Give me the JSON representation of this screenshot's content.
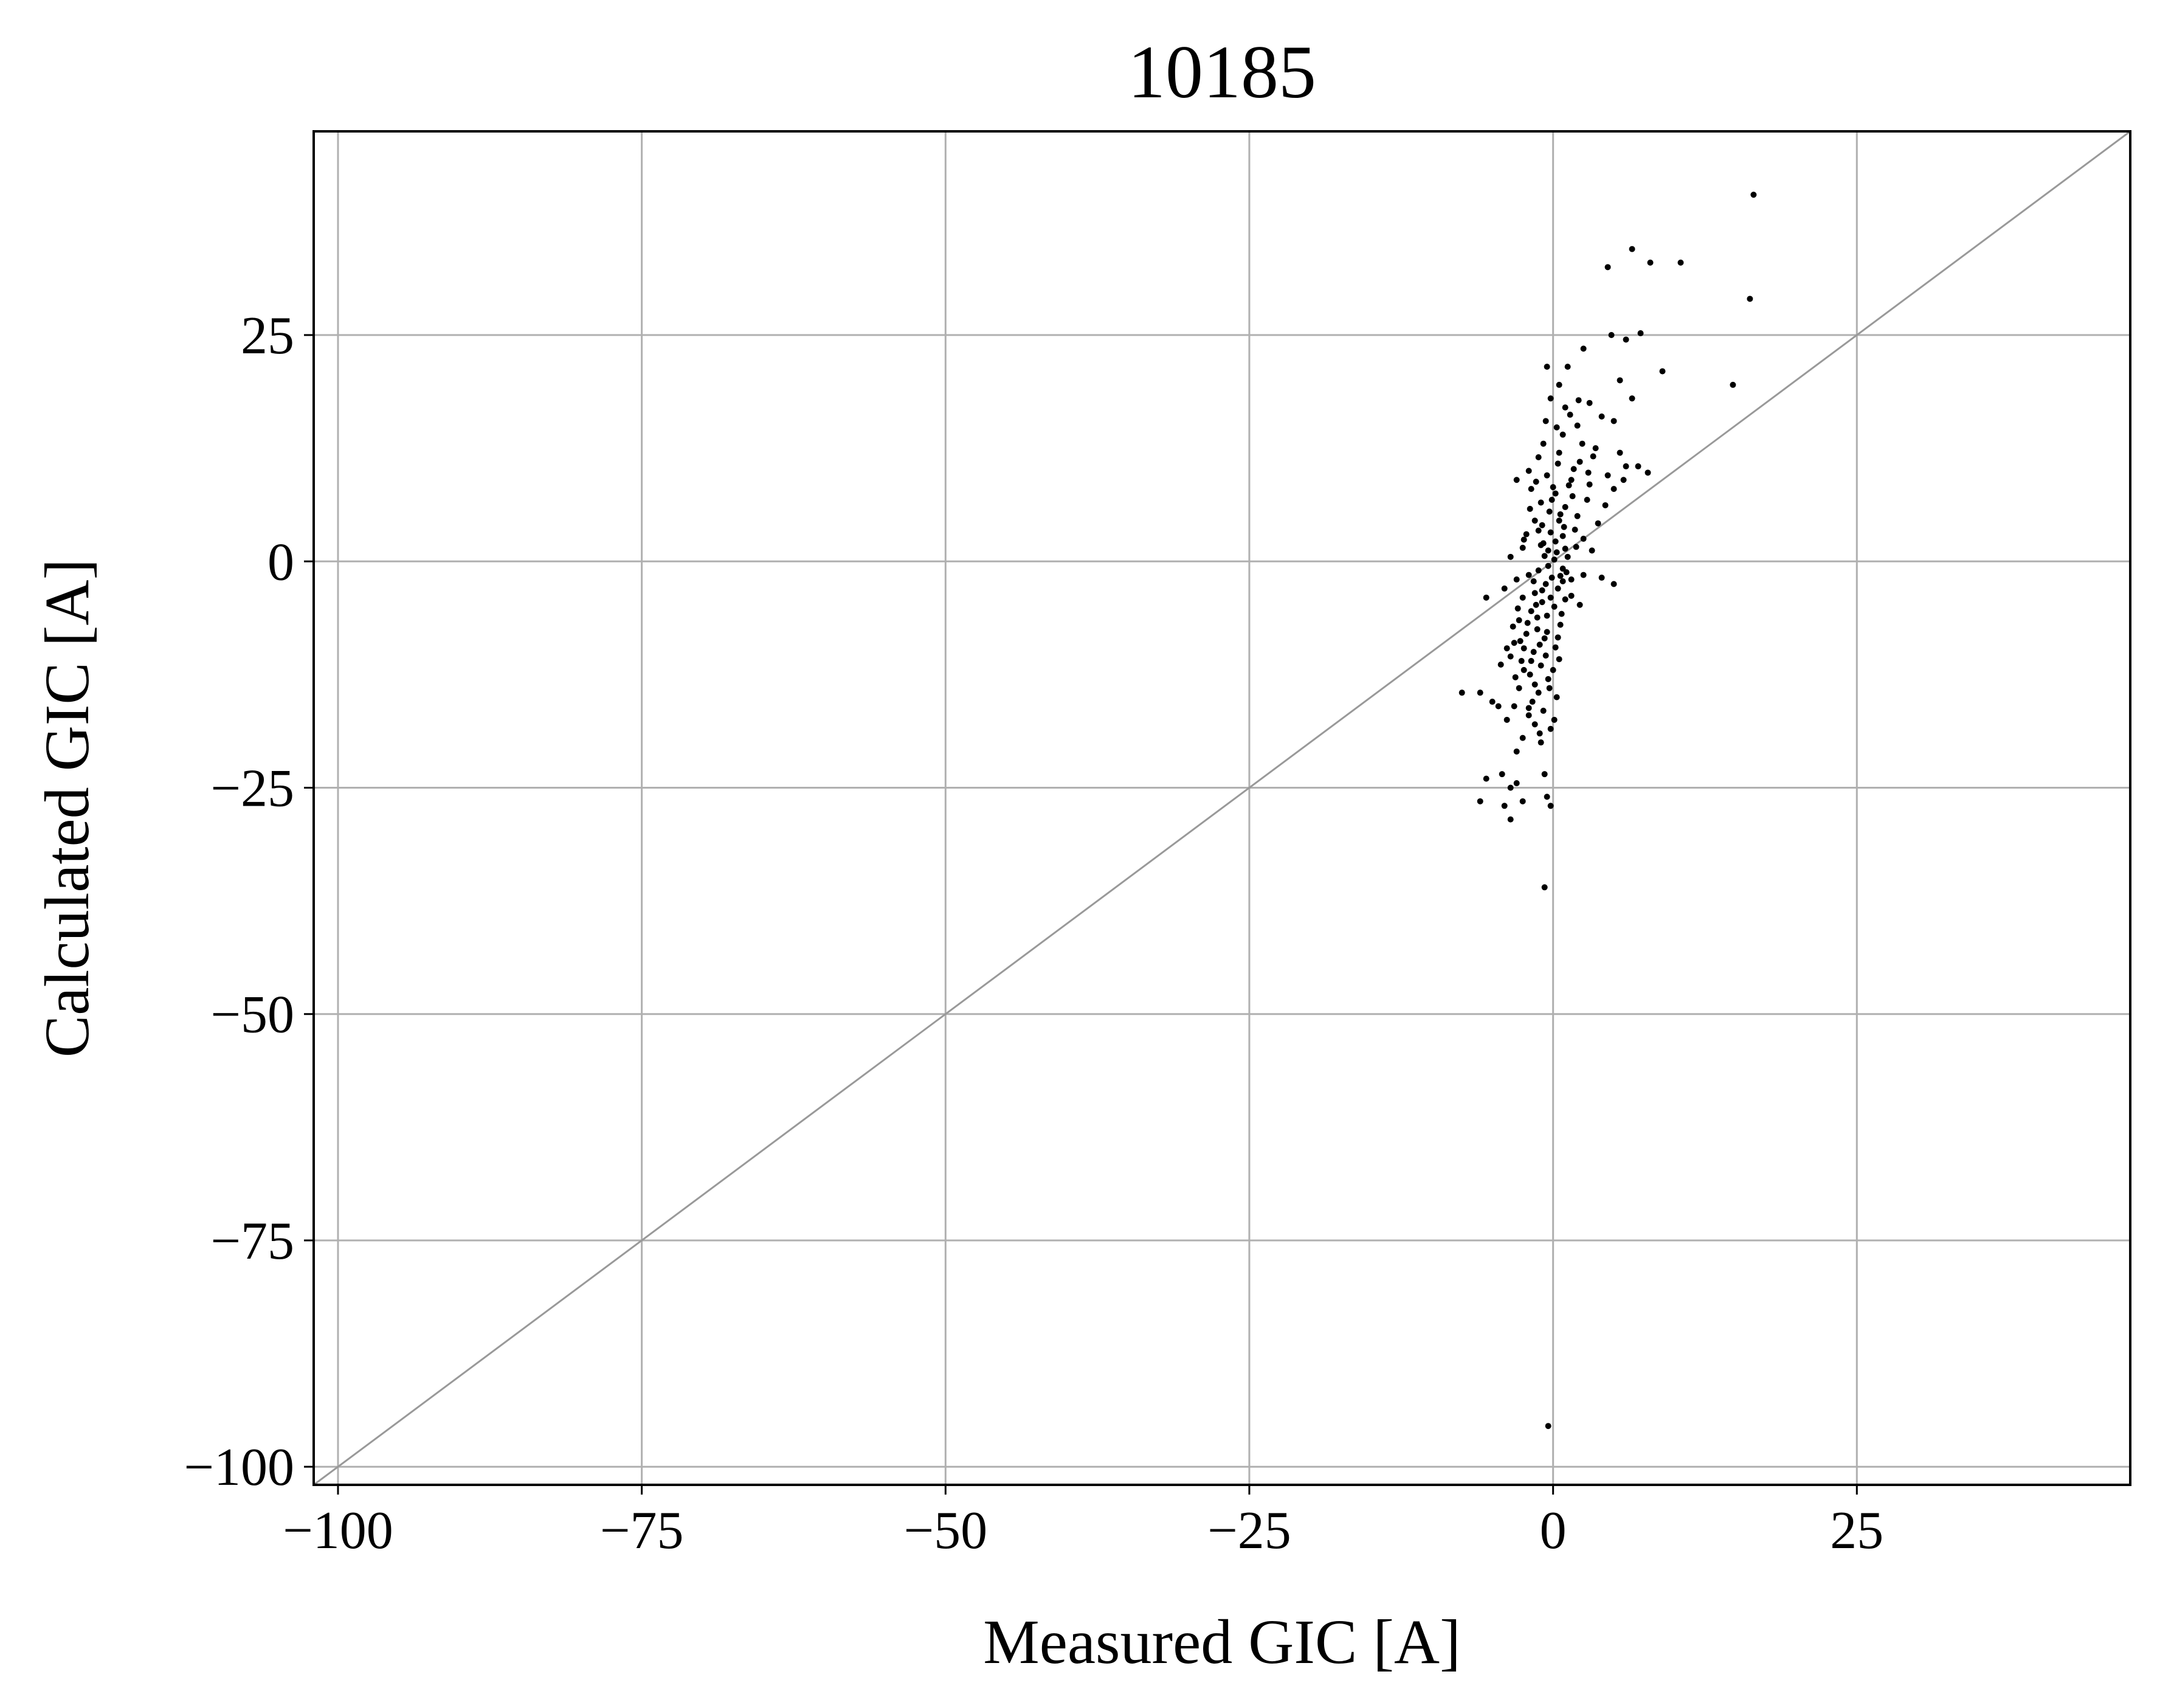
{
  "chart_data": {
    "type": "scatter",
    "title": "10185",
    "xlabel": "Measured GIC [A]",
    "ylabel": "Calculated GIC [A]",
    "xlim": [
      -102,
      47.5
    ],
    "ylim": [
      -102,
      47.5
    ],
    "x_ticks": [
      -100,
      -75,
      -50,
      -25,
      0,
      25
    ],
    "y_ticks": [
      -100,
      -75,
      -50,
      -25,
      0,
      25
    ],
    "x_tick_labels": [
      "−100",
      "−75",
      "−50",
      "−25",
      "0",
      "25"
    ],
    "y_tick_labels": [
      "−100",
      "−75",
      "−50",
      "−25",
      "0",
      "25"
    ],
    "grid": true,
    "reference_line": {
      "type": "identity",
      "color": "#999999"
    },
    "marker_color": "#000000",
    "grid_color": "#b0b0b0",
    "series": [
      {
        "points": [
          [
            16.5,
            40.5
          ],
          [
            6.5,
            34.5
          ],
          [
            4.5,
            32.5
          ],
          [
            8.0,
            33.0
          ],
          [
            10.5,
            33.0
          ],
          [
            16.2,
            29.0
          ],
          [
            4.8,
            25.0
          ],
          [
            6.0,
            24.5
          ],
          [
            7.2,
            25.2
          ],
          [
            14.8,
            19.5
          ],
          [
            9.0,
            21.0
          ],
          [
            5.5,
            20.0
          ],
          [
            2.5,
            23.5
          ],
          [
            1.2,
            21.5
          ],
          [
            -0.5,
            21.5
          ],
          [
            0.5,
            19.5
          ],
          [
            3.0,
            17.5
          ],
          [
            4.0,
            16.0
          ],
          [
            6.5,
            18.0
          ],
          [
            5.0,
            15.5
          ],
          [
            2.0,
            15.0
          ],
          [
            1.0,
            17.0
          ],
          [
            -0.2,
            18.0
          ],
          [
            0.8,
            14.0
          ],
          [
            3.5,
            12.5
          ],
          [
            5.5,
            12.0
          ],
          [
            6.0,
            10.5
          ],
          [
            4.5,
            9.5
          ],
          [
            3.0,
            8.5
          ],
          [
            5.0,
            8.0
          ],
          [
            2.2,
            11.0
          ],
          [
            1.5,
            9.0
          ],
          [
            0.5,
            12.0
          ],
          [
            -0.8,
            13.0
          ],
          [
            -1.2,
            11.5
          ],
          [
            -2.0,
            10.0
          ],
          [
            -3.0,
            9.0
          ],
          [
            -1.8,
            8.0
          ],
          [
            -0.5,
            9.5
          ],
          [
            0.2,
            7.5
          ],
          [
            1.0,
            6.0
          ],
          [
            2.0,
            5.0
          ],
          [
            1.8,
            3.5
          ],
          [
            2.5,
            2.5
          ],
          [
            3.2,
            1.2
          ],
          [
            0.5,
            4.5
          ],
          [
            -0.3,
            5.5
          ],
          [
            -1.0,
            6.5
          ],
          [
            -1.5,
            4.5
          ],
          [
            -2.2,
            3.0
          ],
          [
            -0.8,
            2.0
          ],
          [
            0.3,
            1.0
          ],
          [
            1.2,
            0.5
          ],
          [
            0.8,
            -0.8
          ],
          [
            -0.4,
            -0.5
          ],
          [
            -1.2,
            -1.0
          ],
          [
            -2.0,
            -1.5
          ],
          [
            -0.6,
            -2.5
          ],
          [
            0.4,
            -3.0
          ],
          [
            1.5,
            -2.0
          ],
          [
            2.5,
            -1.5
          ],
          [
            4.0,
            -1.8
          ],
          [
            5.0,
            -2.5
          ],
          [
            -1.5,
            -3.5
          ],
          [
            -2.5,
            -4.0
          ],
          [
            -0.9,
            -4.5
          ],
          [
            0.1,
            -5.0
          ],
          [
            1.0,
            -4.2
          ],
          [
            -1.8,
            -5.5
          ],
          [
            -2.8,
            -6.5
          ],
          [
            -0.5,
            -6.0
          ],
          [
            0.6,
            -7.0
          ],
          [
            -1.3,
            -7.5
          ],
          [
            -2.2,
            -8.0
          ],
          [
            -3.2,
            -9.0
          ],
          [
            -0.7,
            -8.5
          ],
          [
            0.2,
            -9.5
          ],
          [
            -1.6,
            -10.0
          ],
          [
            -2.6,
            -11.0
          ],
          [
            -3.5,
            -10.5
          ],
          [
            -1.0,
            -11.5
          ],
          [
            0.0,
            -12.0
          ],
          [
            -1.9,
            -12.5
          ],
          [
            -0.4,
            -13.0
          ],
          [
            -2.8,
            -14.0
          ],
          [
            -1.2,
            -14.5
          ],
          [
            0.3,
            -15.0
          ],
          [
            -3.2,
            -16.0
          ],
          [
            -0.8,
            -16.5
          ],
          [
            -2.0,
            -17.0
          ],
          [
            -3.8,
            -17.5
          ],
          [
            -5.0,
            -15.5
          ],
          [
            -6.0,
            -14.5
          ],
          [
            -7.5,
            -14.5
          ],
          [
            -4.5,
            -16.0
          ],
          [
            -1.5,
            -18.0
          ],
          [
            -0.2,
            -18.5
          ],
          [
            -2.5,
            -19.5
          ],
          [
            -1.0,
            -20.0
          ],
          [
            -3.0,
            -21.0
          ],
          [
            -4.2,
            -23.5
          ],
          [
            -5.5,
            -24.0
          ],
          [
            -3.0,
            -24.5
          ],
          [
            -0.7,
            -23.5
          ],
          [
            -3.5,
            -25.0
          ],
          [
            -6.0,
            -26.5
          ],
          [
            -4.0,
            -27.0
          ],
          [
            -2.5,
            -26.5
          ],
          [
            -0.5,
            -26.0
          ],
          [
            -0.2,
            -27.0
          ],
          [
            -3.5,
            -28.5
          ],
          [
            -0.7,
            -36.0
          ],
          [
            -0.4,
            -95.5
          ],
          [
            -5.5,
            -4.0
          ],
          [
            -4.0,
            -3.0
          ],
          [
            -3.0,
            -2.0
          ],
          [
            -3.5,
            0.5
          ],
          [
            -2.5,
            1.5
          ],
          [
            -1.0,
            1.8
          ],
          [
            0.8,
            2.8
          ],
          [
            -0.2,
            3.2
          ],
          [
            1.6,
            7.2
          ],
          [
            2.8,
            6.8
          ],
          [
            -1.4,
            8.8
          ],
          [
            0.4,
            10.8
          ],
          [
            2.4,
            13.0
          ],
          [
            -0.6,
            15.5
          ],
          [
            1.4,
            16.2
          ],
          [
            -1.6,
            -2.2
          ],
          [
            -0.9,
            -3.2
          ],
          [
            0.7,
            -5.8
          ],
          [
            -2.1,
            -6.8
          ],
          [
            -1.1,
            -9.2
          ],
          [
            0.5,
            -10.8
          ],
          [
            -2.4,
            -12.0
          ],
          [
            -0.3,
            -14.0
          ],
          [
            -1.7,
            -15.5
          ],
          [
            0.1,
            -17.5
          ],
          [
            -2.9,
            -5.2
          ],
          [
            -3.3,
            -7.2
          ],
          [
            -2.4,
            -9.6
          ],
          [
            -1.4,
            -4.8
          ],
          [
            -0.1,
            -1.8
          ],
          [
            1.1,
            -1.2
          ],
          [
            0.2,
            2.2
          ],
          [
            1.9,
            1.6
          ],
          [
            -0.7,
            0.6
          ],
          [
            0.6,
            5.2
          ],
          [
            -0.1,
            6.8
          ],
          [
            1.3,
            8.4
          ],
          [
            2.9,
            9.8
          ],
          [
            -0.9,
            4.0
          ],
          [
            0.9,
            3.8
          ],
          [
            -1.9,
            5.8
          ],
          [
            0.0,
            8.2
          ],
          [
            1.7,
            10.2
          ],
          [
            -1.3,
            -6.2
          ],
          [
            -0.5,
            -7.8
          ],
          [
            0.4,
            -8.4
          ],
          [
            -2.7,
            -8.8
          ],
          [
            -1.8,
            -11.0
          ],
          [
            -3.1,
            -12.8
          ],
          [
            -0.6,
            -10.4
          ],
          [
            -1.5,
            -13.6
          ],
          [
            3.7,
            4.2
          ],
          [
            4.3,
            6.2
          ],
          [
            5.8,
            9.0
          ],
          [
            7.0,
            10.5
          ],
          [
            7.8,
            9.8
          ],
          [
            3.3,
            11.6
          ],
          [
            2.1,
            17.8
          ],
          [
            0.3,
            14.8
          ],
          [
            -2.4,
            2.4
          ],
          [
            -1.2,
            3.4
          ],
          [
            1.5,
            -3.8
          ],
          [
            2.2,
            -4.8
          ],
          [
            0.8,
            -2.2
          ],
          [
            -0.2,
            -4.0
          ],
          [
            -3.8,
            -9.6
          ],
          [
            -4.3,
            -11.4
          ],
          [
            -2.0,
            -16.2
          ],
          [
            -1.1,
            -19.0
          ],
          [
            0.6,
            -1.6
          ],
          [
            1.0,
            1.4
          ],
          [
            0.1,
            0.2
          ],
          [
            -0.4,
            1.2
          ]
        ]
      }
    ]
  }
}
